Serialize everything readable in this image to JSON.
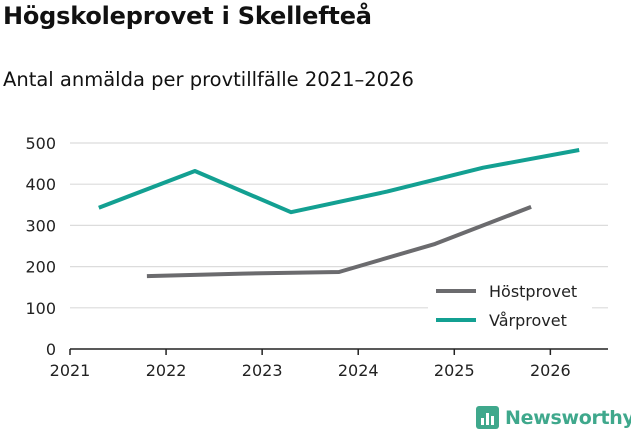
{
  "header": {
    "title": "Högskoleprovet i Skellefteå",
    "subtitle": "Antal anmälda per provtillfälle 2021–2026"
  },
  "chart_data": {
    "type": "line",
    "title": "Högskoleprovet i Skellefteå",
    "subtitle": "Antal anmälda per provtillfälle 2021–2026",
    "xlabel": "",
    "ylabel": "",
    "xlim": [
      2021,
      2026.6
    ],
    "ylim": [
      0,
      500
    ],
    "x_ticks": [
      "2021",
      "2022",
      "2023",
      "2024",
      "2025",
      "2026"
    ],
    "y_ticks": [
      "0",
      "100",
      "200",
      "300",
      "400",
      "500"
    ],
    "grid": true,
    "legend_position": "bottom-right",
    "series": [
      {
        "name": "Höstprovet",
        "color": "#6b6b6e",
        "points": [
          {
            "x": 2021.8,
            "y": 177
          },
          {
            "x": 2022.8,
            "y": 183
          },
          {
            "x": 2023.8,
            "y": 187
          },
          {
            "x": 2024.8,
            "y": 255
          },
          {
            "x": 2025.8,
            "y": 345
          }
        ]
      },
      {
        "name": "Vårprovet",
        "color": "#13a092",
        "points": [
          {
            "x": 2021.3,
            "y": 343
          },
          {
            "x": 2022.3,
            "y": 432
          },
          {
            "x": 2023.3,
            "y": 332
          },
          {
            "x": 2024.3,
            "y": 382
          },
          {
            "x": 2025.3,
            "y": 440
          },
          {
            "x": 2026.3,
            "y": 483
          }
        ]
      }
    ]
  },
  "footer": {
    "brand": "Newsworthy"
  }
}
